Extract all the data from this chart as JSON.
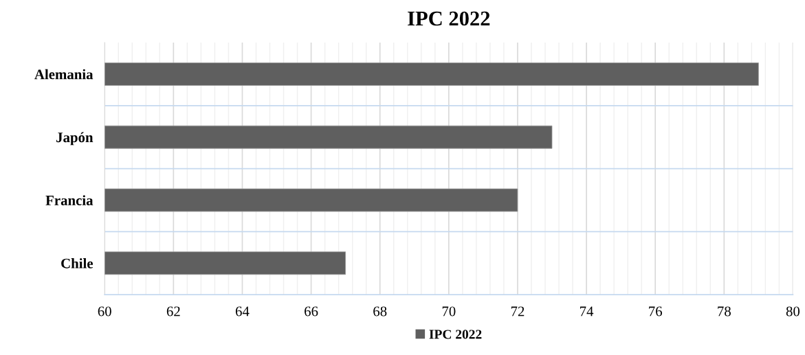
{
  "chart_data": {
    "type": "bar",
    "orientation": "horizontal",
    "title": "IPC 2022",
    "categories": [
      "Alemania",
      "Japón",
      "Francia",
      "Chile"
    ],
    "series": [
      {
        "name": "IPC 2022",
        "color": "#5f5f5f",
        "values": [
          79,
          73,
          72,
          67
        ]
      }
    ],
    "xlim": [
      60,
      80
    ],
    "xticks": [
      60,
      62,
      64,
      66,
      68,
      70,
      72,
      74,
      76,
      78,
      80
    ],
    "grid": true,
    "legend": "bottom"
  }
}
